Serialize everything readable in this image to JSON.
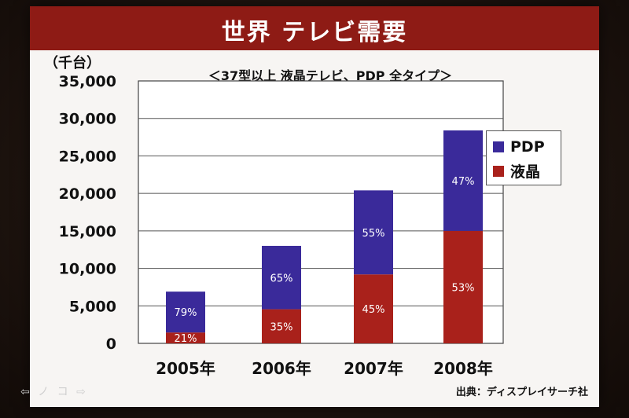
{
  "slide": {
    "title": "世界 テレビ需要",
    "subtitle": "＜37型以上 液晶テレビ、PDP 全タイプ＞",
    "unit": "（千台）",
    "source": "出典：ディスプレイサーチ社",
    "nav": "⇦ ノ コ ⇨"
  },
  "chart_data": {
    "type": "bar",
    "stacked": true,
    "categories": [
      "2005年",
      "2006年",
      "2007年",
      "2008年"
    ],
    "ylim": [
      0,
      35000
    ],
    "yticks": [
      "0",
      "5,000",
      "10,000",
      "15,000",
      "20,000",
      "25,000",
      "30,000",
      "35,000"
    ],
    "grid": true,
    "legend_position": "right",
    "series": [
      {
        "name": "液晶",
        "color": "#a9211b",
        "values": [
          1450,
          4550,
          9200,
          15000
        ],
        "labels": [
          "21%",
          "35%",
          "45%",
          "53%"
        ]
      },
      {
        "name": "PDP",
        "color": "#3a2a9a",
        "values": [
          5450,
          8450,
          11200,
          13400
        ],
        "labels": [
          "79%",
          "65%",
          "55%",
          "47%"
        ]
      }
    ]
  },
  "legend": {
    "pdp_label": "PDP",
    "lcd_label": "液晶",
    "pdp_color": "#3a2a9a",
    "lcd_color": "#a9211b"
  }
}
